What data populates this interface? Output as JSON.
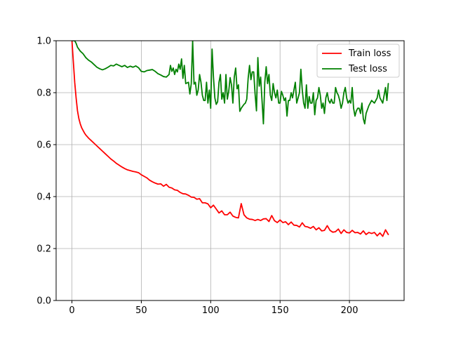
{
  "chart_data": {
    "type": "line",
    "title": "",
    "xlabel": "",
    "ylabel": "",
    "xlim": [
      -11.4,
      239.4
    ],
    "ylim": [
      0.0,
      1.0
    ],
    "xticks": [
      0,
      50,
      100,
      150,
      200
    ],
    "yticks": [
      0.0,
      0.2,
      0.4,
      0.6,
      0.8,
      1.0
    ],
    "xtick_labels": [
      "0",
      "50",
      "100",
      "150",
      "200"
    ],
    "ytick_labels": [
      "0.0",
      "0.2",
      "0.4",
      "0.6",
      "0.8",
      "1.0"
    ],
    "grid": true,
    "legend_position": "top-right",
    "series": [
      {
        "name": "Train loss",
        "color": "#ff0000",
        "points": [
          [
            0,
            1.0
          ],
          [
            1,
            0.92
          ],
          [
            2,
            0.84
          ],
          [
            3,
            0.78
          ],
          [
            4,
            0.73
          ],
          [
            5,
            0.7
          ],
          [
            6,
            0.68
          ],
          [
            7,
            0.665
          ],
          [
            8,
            0.655
          ],
          [
            9,
            0.645
          ],
          [
            10,
            0.637
          ],
          [
            12,
            0.625
          ],
          [
            14,
            0.615
          ],
          [
            16,
            0.605
          ],
          [
            18,
            0.595
          ],
          [
            20,
            0.585
          ],
          [
            22,
            0.575
          ],
          [
            24,
            0.565
          ],
          [
            26,
            0.555
          ],
          [
            28,
            0.545
          ],
          [
            30,
            0.537
          ],
          [
            32,
            0.528
          ],
          [
            34,
            0.521
          ],
          [
            36,
            0.514
          ],
          [
            38,
            0.508
          ],
          [
            40,
            0.503
          ],
          [
            42,
            0.5
          ],
          [
            44,
            0.497
          ],
          [
            46,
            0.495
          ],
          [
            48,
            0.492
          ],
          [
            50,
            0.484
          ],
          [
            52,
            0.478
          ],
          [
            54,
            0.472
          ],
          [
            56,
            0.463
          ],
          [
            58,
            0.457
          ],
          [
            60,
            0.452
          ],
          [
            62,
            0.448
          ],
          [
            64,
            0.449
          ],
          [
            66,
            0.44
          ],
          [
            68,
            0.447
          ],
          [
            70,
            0.436
          ],
          [
            72,
            0.433
          ],
          [
            74,
            0.426
          ],
          [
            76,
            0.424
          ],
          [
            78,
            0.416
          ],
          [
            80,
            0.411
          ],
          [
            82,
            0.41
          ],
          [
            84,
            0.405
          ],
          [
            86,
            0.398
          ],
          [
            88,
            0.397
          ],
          [
            90,
            0.39
          ],
          [
            92,
            0.392
          ],
          [
            94,
            0.376
          ],
          [
            96,
            0.376
          ],
          [
            98,
            0.372
          ],
          [
            100,
            0.357
          ],
          [
            102,
            0.367
          ],
          [
            104,
            0.352
          ],
          [
            106,
            0.337
          ],
          [
            108,
            0.345
          ],
          [
            110,
            0.33
          ],
          [
            112,
            0.33
          ],
          [
            114,
            0.34
          ],
          [
            116,
            0.325
          ],
          [
            118,
            0.32
          ],
          [
            120,
            0.318
          ],
          [
            122,
            0.373
          ],
          [
            124,
            0.33
          ],
          [
            126,
            0.318
          ],
          [
            128,
            0.313
          ],
          [
            130,
            0.312
          ],
          [
            132,
            0.308
          ],
          [
            134,
            0.312
          ],
          [
            136,
            0.308
          ],
          [
            138,
            0.314
          ],
          [
            140,
            0.315
          ],
          [
            142,
            0.304
          ],
          [
            144,
            0.327
          ],
          [
            146,
            0.307
          ],
          [
            148,
            0.3
          ],
          [
            150,
            0.31
          ],
          [
            152,
            0.3
          ],
          [
            154,
            0.303
          ],
          [
            156,
            0.292
          ],
          [
            158,
            0.302
          ],
          [
            160,
            0.29
          ],
          [
            162,
            0.289
          ],
          [
            164,
            0.283
          ],
          [
            166,
            0.299
          ],
          [
            168,
            0.285
          ],
          [
            170,
            0.283
          ],
          [
            172,
            0.278
          ],
          [
            174,
            0.285
          ],
          [
            176,
            0.272
          ],
          [
            178,
            0.28
          ],
          [
            180,
            0.268
          ],
          [
            182,
            0.27
          ],
          [
            184,
            0.288
          ],
          [
            186,
            0.27
          ],
          [
            188,
            0.263
          ],
          [
            190,
            0.265
          ],
          [
            192,
            0.275
          ],
          [
            194,
            0.258
          ],
          [
            196,
            0.272
          ],
          [
            198,
            0.262
          ],
          [
            200,
            0.26
          ],
          [
            202,
            0.27
          ],
          [
            204,
            0.261
          ],
          [
            206,
            0.262
          ],
          [
            208,
            0.256
          ],
          [
            210,
            0.268
          ],
          [
            212,
            0.254
          ],
          [
            214,
            0.262
          ],
          [
            216,
            0.258
          ],
          [
            218,
            0.262
          ],
          [
            220,
            0.249
          ],
          [
            222,
            0.26
          ],
          [
            224,
            0.247
          ],
          [
            226,
            0.272
          ],
          [
            228,
            0.254
          ]
        ]
      },
      {
        "name": "Test loss",
        "color": "#008000",
        "points": [
          [
            0,
            1.0
          ],
          [
            2,
            1.0
          ],
          [
            3,
            0.99
          ],
          [
            4,
            0.975
          ],
          [
            6,
            0.96
          ],
          [
            8,
            0.95
          ],
          [
            10,
            0.935
          ],
          [
            12,
            0.925
          ],
          [
            14,
            0.918
          ],
          [
            16,
            0.908
          ],
          [
            18,
            0.898
          ],
          [
            20,
            0.892
          ],
          [
            22,
            0.888
          ],
          [
            24,
            0.892
          ],
          [
            26,
            0.898
          ],
          [
            28,
            0.905
          ],
          [
            30,
            0.903
          ],
          [
            32,
            0.91
          ],
          [
            34,
            0.905
          ],
          [
            36,
            0.9
          ],
          [
            38,
            0.905
          ],
          [
            40,
            0.897
          ],
          [
            42,
            0.902
          ],
          [
            44,
            0.898
          ],
          [
            46,
            0.903
          ],
          [
            48,
            0.896
          ],
          [
            50,
            0.882
          ],
          [
            52,
            0.88
          ],
          [
            54,
            0.885
          ],
          [
            56,
            0.887
          ],
          [
            58,
            0.889
          ],
          [
            60,
            0.882
          ],
          [
            62,
            0.873
          ],
          [
            64,
            0.868
          ],
          [
            66,
            0.862
          ],
          [
            68,
            0.86
          ],
          [
            70,
            0.87
          ],
          [
            71,
            0.905
          ],
          [
            72,
            0.882
          ],
          [
            73,
            0.895
          ],
          [
            74,
            0.87
          ],
          [
            75,
            0.89
          ],
          [
            76,
            0.88
          ],
          [
            77,
            0.91
          ],
          [
            78,
            0.89
          ],
          [
            79,
            0.93
          ],
          [
            80,
            0.855
          ],
          [
            81,
            0.905
          ],
          [
            82,
            0.835
          ],
          [
            84,
            0.84
          ],
          [
            85,
            0.795
          ],
          [
            86,
            0.835
          ],
          [
            87,
            1.0
          ],
          [
            88,
            0.833
          ],
          [
            89,
            0.84
          ],
          [
            90,
            0.79
          ],
          [
            91,
            0.81
          ],
          [
            92,
            0.87
          ],
          [
            93,
            0.84
          ],
          [
            94,
            0.79
          ],
          [
            95,
            0.77
          ],
          [
            96,
            0.77
          ],
          [
            97,
            0.84
          ],
          [
            98,
            0.76
          ],
          [
            99,
            0.81
          ],
          [
            100,
            0.74
          ],
          [
            101,
            0.968
          ],
          [
            102,
            0.86
          ],
          [
            103,
            0.78
          ],
          [
            104,
            0.755
          ],
          [
            105,
            0.765
          ],
          [
            106,
            0.84
          ],
          [
            107,
            0.87
          ],
          [
            108,
            0.775
          ],
          [
            109,
            0.8
          ],
          [
            110,
            0.76
          ],
          [
            111,
            0.87
          ],
          [
            112,
            0.775
          ],
          [
            113,
            0.805
          ],
          [
            114,
            0.858
          ],
          [
            115,
            0.83
          ],
          [
            116,
            0.76
          ],
          [
            117,
            0.86
          ],
          [
            118,
            0.895
          ],
          [
            119,
            0.815
          ],
          [
            120,
            0.83
          ],
          [
            121,
            0.728
          ],
          [
            122,
            0.74
          ],
          [
            124,
            0.755
          ],
          [
            125,
            0.76
          ],
          [
            126,
            0.775
          ],
          [
            127,
            0.855
          ],
          [
            128,
            0.905
          ],
          [
            129,
            0.85
          ],
          [
            130,
            0.88
          ],
          [
            131,
            0.88
          ],
          [
            132,
            0.795
          ],
          [
            133,
            0.73
          ],
          [
            134,
            0.935
          ],
          [
            135,
            0.825
          ],
          [
            136,
            0.86
          ],
          [
            137,
            0.77
          ],
          [
            138,
            0.68
          ],
          [
            139,
            0.84
          ],
          [
            140,
            0.9
          ],
          [
            141,
            0.835
          ],
          [
            142,
            0.87
          ],
          [
            143,
            0.79
          ],
          [
            144,
            0.77
          ],
          [
            145,
            0.835
          ],
          [
            146,
            0.8
          ],
          [
            147,
            0.78
          ],
          [
            148,
            0.81
          ],
          [
            149,
            0.76
          ],
          [
            150,
            0.76
          ],
          [
            151,
            0.805
          ],
          [
            152,
            0.79
          ],
          [
            153,
            0.77
          ],
          [
            154,
            0.78
          ],
          [
            155,
            0.71
          ],
          [
            156,
            0.77
          ],
          [
            157,
            0.77
          ],
          [
            158,
            0.8
          ],
          [
            159,
            0.78
          ],
          [
            160,
            0.81
          ],
          [
            161,
            0.84
          ],
          [
            162,
            0.76
          ],
          [
            163,
            0.78
          ],
          [
            164,
            0.8
          ],
          [
            165,
            0.89
          ],
          [
            166,
            0.81
          ],
          [
            167,
            0.76
          ],
          [
            168,
            0.74
          ],
          [
            169,
            0.83
          ],
          [
            170,
            0.74
          ],
          [
            171,
            0.785
          ],
          [
            172,
            0.76
          ],
          [
            173,
            0.76
          ],
          [
            174,
            0.8
          ],
          [
            175,
            0.715
          ],
          [
            176,
            0.77
          ],
          [
            177,
            0.78
          ],
          [
            178,
            0.82
          ],
          [
            179,
            0.79
          ],
          [
            180,
            0.74
          ],
          [
            181,
            0.76
          ],
          [
            182,
            0.72
          ],
          [
            183,
            0.78
          ],
          [
            184,
            0.8
          ],
          [
            185,
            0.77
          ],
          [
            186,
            0.76
          ],
          [
            187,
            0.775
          ],
          [
            188,
            0.76
          ],
          [
            189,
            0.76
          ],
          [
            190,
            0.82
          ],
          [
            191,
            0.8
          ],
          [
            192,
            0.79
          ],
          [
            193,
            0.77
          ],
          [
            194,
            0.74
          ],
          [
            195,
            0.76
          ],
          [
            196,
            0.8
          ],
          [
            197,
            0.82
          ],
          [
            198,
            0.78
          ],
          [
            199,
            0.76
          ],
          [
            200,
            0.77
          ],
          [
            201,
            0.76
          ],
          [
            202,
            0.82
          ],
          [
            203,
            0.74
          ],
          [
            204,
            0.71
          ],
          [
            205,
            0.73
          ],
          [
            206,
            0.74
          ],
          [
            207,
            0.74
          ],
          [
            208,
            0.72
          ],
          [
            209,
            0.76
          ],
          [
            210,
            0.7
          ],
          [
            211,
            0.68
          ],
          [
            212,
            0.72
          ],
          [
            214,
            0.75
          ],
          [
            216,
            0.77
          ],
          [
            218,
            0.76
          ],
          [
            220,
            0.78
          ],
          [
            221,
            0.81
          ],
          [
            222,
            0.78
          ],
          [
            224,
            0.76
          ],
          [
            226,
            0.82
          ],
          [
            227,
            0.77
          ],
          [
            228,
            0.835
          ]
        ]
      }
    ]
  }
}
